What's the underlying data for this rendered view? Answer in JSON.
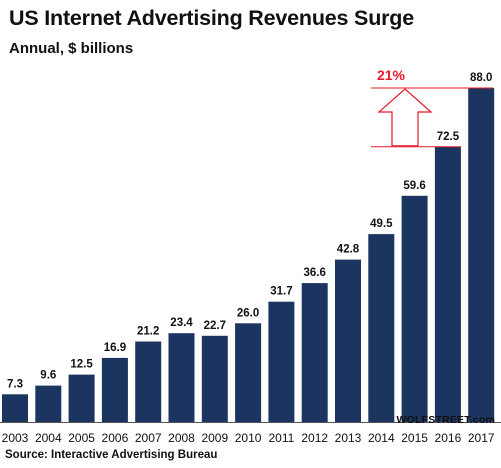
{
  "chart_data": {
    "type": "bar",
    "title": "US Internet Advertising Revenues Surge",
    "subtitle": "Annual, $ billions",
    "categories": [
      "2003",
      "2004",
      "2005",
      "2006",
      "2007",
      "2008",
      "2009",
      "2010",
      "2011",
      "2012",
      "2013",
      "2014",
      "2015",
      "2016",
      "2017"
    ],
    "values": [
      7.3,
      9.6,
      12.5,
      16.9,
      21.2,
      23.4,
      22.7,
      26.0,
      31.7,
      36.6,
      42.8,
      49.5,
      59.6,
      72.5,
      88.0
    ],
    "value_labels": [
      "7.3",
      "9.6",
      "12.5",
      "16.9",
      "21.2",
      "23.4",
      "22.7",
      "26.0",
      "31.7",
      "36.6",
      "42.8",
      "49.5",
      "59.6",
      "72.5",
      "88.0"
    ],
    "ylim": [
      0,
      88
    ],
    "xlabel": "",
    "ylabel": "",
    "grid": false,
    "bar_color": "#1b3560",
    "annotation": {
      "text": "21%",
      "color": "#e8192c",
      "from_category": "2016",
      "to_category": "2017"
    },
    "source": "Source: Interactive Advertising Bureau",
    "watermark": "WOLFSTREET.com"
  }
}
